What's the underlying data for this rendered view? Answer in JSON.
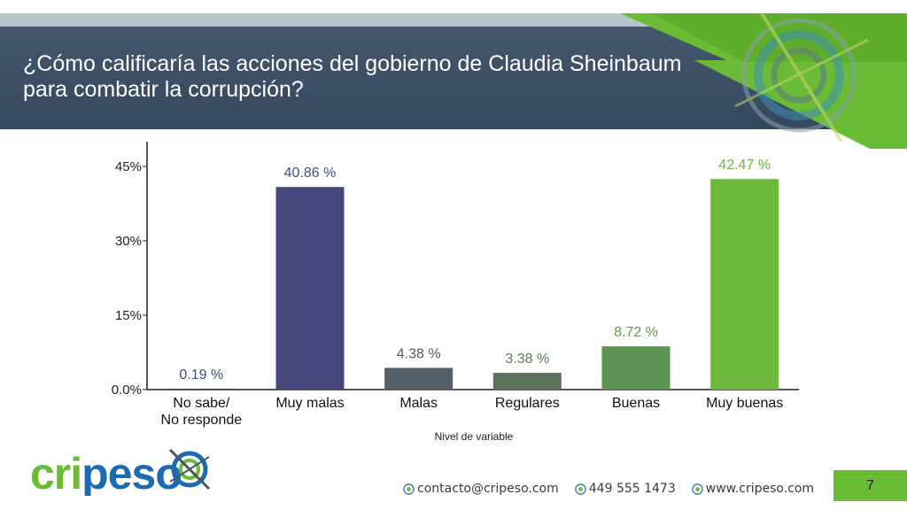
{
  "slide": {
    "title": "¿Cómo calificaría las acciones del gobierno de Claudia Sheinbaum para combatir la corrupción?",
    "page_number": "7"
  },
  "brand": {
    "name": "cripeso",
    "letters_blue": "cri",
    "letters_green": "p",
    "letters_blue2": "eso",
    "colors": {
      "navy": "#33475e",
      "green": "#6abb35",
      "blue": "#1c6bb0"
    }
  },
  "footer": {
    "email": "contacto@cripeso.com",
    "phone": "449 555 1473",
    "website": "www.cripeso.com",
    "icon": "globe-icon"
  },
  "chart_data": {
    "type": "bar",
    "categories": [
      "No sabe/\nNo responde",
      "Muy malas",
      "Malas",
      "Regulares",
      "Buenas",
      "Muy buenas"
    ],
    "values": [
      0.19,
      40.86,
      4.38,
      3.38,
      8.72,
      42.47
    ],
    "value_labels": [
      "0.19 %",
      "40.86 %",
      "4.38 %",
      "3.38 %",
      "8.72 %",
      "42.47 %"
    ],
    "bar_colors": [
      "#45467a",
      "#45467a",
      "#555f69",
      "#5d725a",
      "#5d9352",
      "#6fba3e"
    ],
    "label_colors": [
      "#3d4f86",
      "#3d4f86",
      "#4f5a66",
      "#5a7a5a",
      "#5f9848",
      "#6ab63c"
    ],
    "xlabel": "Nivel de variable",
    "ylabel": "",
    "yticks": [
      "0.0%",
      "15%",
      "30%",
      "45%"
    ],
    "ytick_values": [
      0,
      15,
      30,
      45
    ],
    "ylim": [
      0,
      50
    ]
  }
}
